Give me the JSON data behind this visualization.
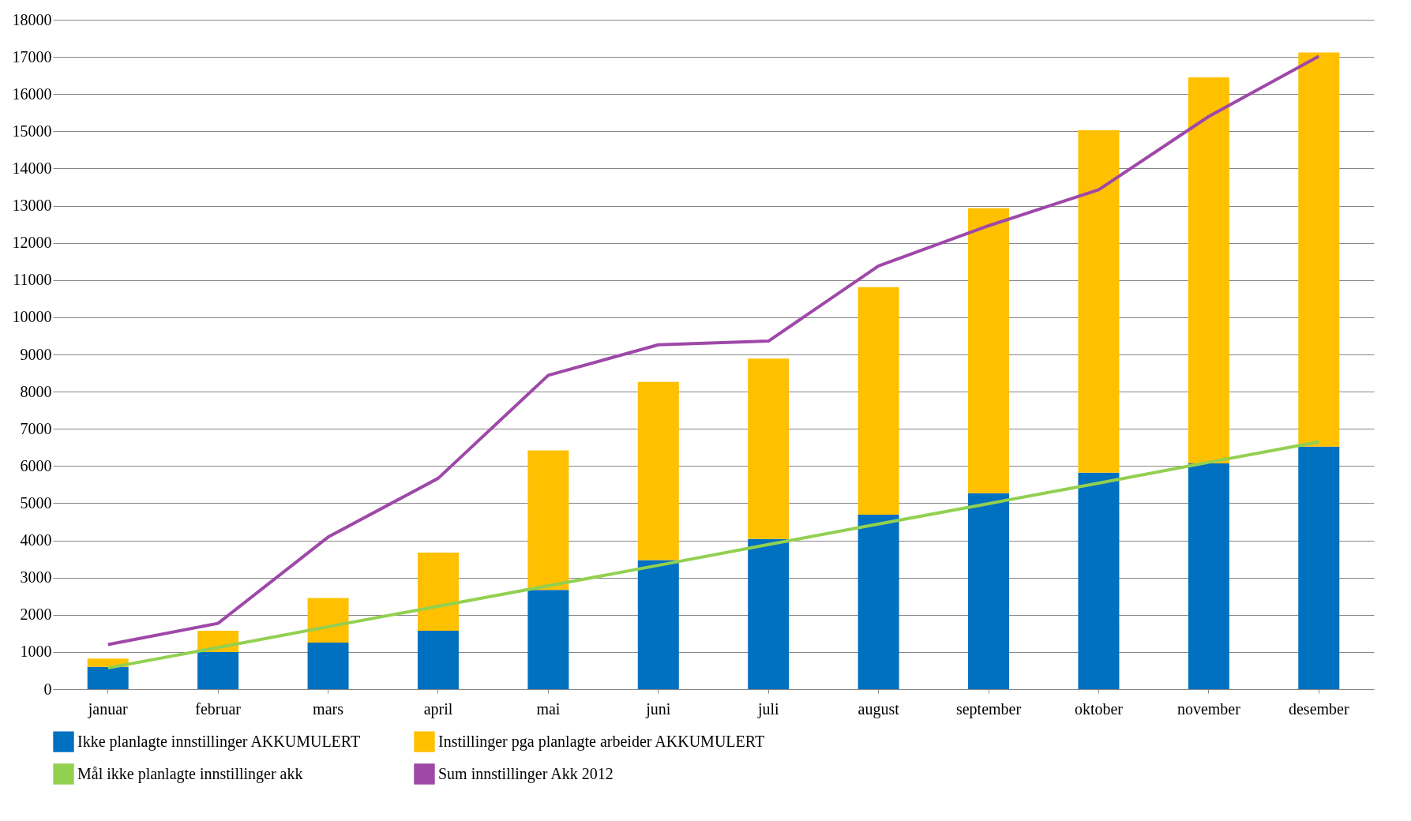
{
  "chart_data": {
    "type": "bar",
    "stacked": true,
    "categories": [
      "januar",
      "februar",
      "mars",
      "april",
      "mai",
      "juni",
      "juli",
      "august",
      "september",
      "oktober",
      "november",
      "desember"
    ],
    "ylim": [
      0,
      18000
    ],
    "yticks": [
      0,
      1000,
      2000,
      3000,
      4000,
      5000,
      6000,
      7000,
      8000,
      9000,
      10000,
      11000,
      12000,
      13000,
      14000,
      15000,
      16000,
      17000,
      18000
    ],
    "grid": "y",
    "legend": "bottom",
    "series": [
      {
        "name": "Ikke planlagte innstillinger AKKUMULERT",
        "color": "#0070c0",
        "values": [
          600,
          1000,
          1250,
          1570,
          2670,
          3470,
          4040,
          4690,
          5270,
          5820,
          6070,
          6520
        ]
      },
      {
        "name": "Instillinger pga planlagte arbeider AKKUMULERT",
        "color": "#ffc000",
        "values": [
          220,
          570,
          1200,
          2100,
          3750,
          4790,
          4850,
          6120,
          7660,
          9210,
          10380,
          10600
        ]
      },
      {
        "name": "Mål ikke planlagte innstillinger akk",
        "type": "line",
        "color": "#92d050",
        "values": [
          570,
          1120,
          1680,
          2230,
          2780,
          3330,
          3890,
          4440,
          4990,
          5540,
          6100,
          6650
        ]
      },
      {
        "name": "Sum innstillinger Akk 2012",
        "type": "line",
        "color": "#9e48a8",
        "values": [
          1200,
          1770,
          4090,
          5670,
          8440,
          9260,
          9360,
          11380,
          12460,
          13430,
          15400,
          17020
        ]
      }
    ]
  }
}
